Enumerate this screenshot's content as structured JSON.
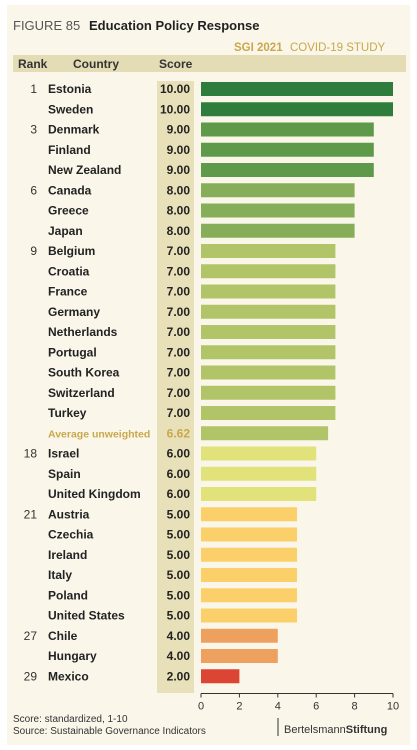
{
  "header": {
    "figure_label": "FIGURE 85",
    "title": "Education Policy Response",
    "study_year": "SGI 2021",
    "study_name": "COVID-19 STUDY"
  },
  "columns": {
    "rank": "Rank",
    "country": "Country",
    "score": "Score"
  },
  "footer": {
    "score_note": "Score:   standardized, 1-10",
    "source_note": "Source:  Sustainable Governance Indicators",
    "logo_part1": "Bertelsmann",
    "logo_part2": "Stiftung"
  },
  "colors": {
    "background": "#faf6ea",
    "header_band": "#e4dcb4",
    "score_band": "#e8e0b8",
    "accent_gold": "#c9a84a",
    "score_10": "#2e7d3c",
    "score_9": "#5f9a4a",
    "score_8": "#86ad58",
    "score_7": "#b1c467",
    "score_6": "#e2e27a",
    "score_5": "#fbd06b",
    "score_4": "#eea15e",
    "score_2": "#dc4434"
  },
  "chart_data": {
    "type": "bar",
    "orientation": "horizontal",
    "title": "Education Policy Response",
    "xlim": [
      0,
      10
    ],
    "xticks": [
      0,
      2,
      4,
      6,
      8,
      10
    ],
    "rows": [
      {
        "rank": "1",
        "country": "Estonia",
        "score": "10.00",
        "value": 10
      },
      {
        "rank": "",
        "country": "Sweden",
        "score": "10.00",
        "value": 10
      },
      {
        "rank": "3",
        "country": "Denmark",
        "score": "9.00",
        "value": 9
      },
      {
        "rank": "",
        "country": "Finland",
        "score": "9.00",
        "value": 9
      },
      {
        "rank": "",
        "country": "New Zealand",
        "score": "9.00",
        "value": 9
      },
      {
        "rank": "6",
        "country": "Canada",
        "score": "8.00",
        "value": 8
      },
      {
        "rank": "",
        "country": "Greece",
        "score": "8.00",
        "value": 8
      },
      {
        "rank": "",
        "country": "Japan",
        "score": "8.00",
        "value": 8
      },
      {
        "rank": "9",
        "country": "Belgium",
        "score": "7.00",
        "value": 7
      },
      {
        "rank": "",
        "country": "Croatia",
        "score": "7.00",
        "value": 7
      },
      {
        "rank": "",
        "country": "France",
        "score": "7.00",
        "value": 7
      },
      {
        "rank": "",
        "country": "Germany",
        "score": "7.00",
        "value": 7
      },
      {
        "rank": "",
        "country": "Netherlands",
        "score": "7.00",
        "value": 7
      },
      {
        "rank": "",
        "country": "Portugal",
        "score": "7.00",
        "value": 7
      },
      {
        "rank": "",
        "country": "South Korea",
        "score": "7.00",
        "value": 7
      },
      {
        "rank": "",
        "country": "Switzerland",
        "score": "7.00",
        "value": 7
      },
      {
        "rank": "",
        "country": "Turkey",
        "score": "7.00",
        "value": 7
      },
      {
        "rank": "",
        "country": "Average unweighted",
        "score": "6.62",
        "value": 6.62,
        "average": true
      },
      {
        "rank": "18",
        "country": "Israel",
        "score": "6.00",
        "value": 6
      },
      {
        "rank": "",
        "country": "Spain",
        "score": "6.00",
        "value": 6
      },
      {
        "rank": "",
        "country": "United Kingdom",
        "score": "6.00",
        "value": 6
      },
      {
        "rank": "21",
        "country": "Austria",
        "score": "5.00",
        "value": 5
      },
      {
        "rank": "",
        "country": "Czechia",
        "score": "5.00",
        "value": 5
      },
      {
        "rank": "",
        "country": "Ireland",
        "score": "5.00",
        "value": 5
      },
      {
        "rank": "",
        "country": "Italy",
        "score": "5.00",
        "value": 5
      },
      {
        "rank": "",
        "country": "Poland",
        "score": "5.00",
        "value": 5
      },
      {
        "rank": "",
        "country": "United States",
        "score": "5.00",
        "value": 5
      },
      {
        "rank": "27",
        "country": "Chile",
        "score": "4.00",
        "value": 4
      },
      {
        "rank": "",
        "country": "Hungary",
        "score": "4.00",
        "value": 4
      },
      {
        "rank": "29",
        "country": "Mexico",
        "score": "2.00",
        "value": 2
      }
    ]
  }
}
